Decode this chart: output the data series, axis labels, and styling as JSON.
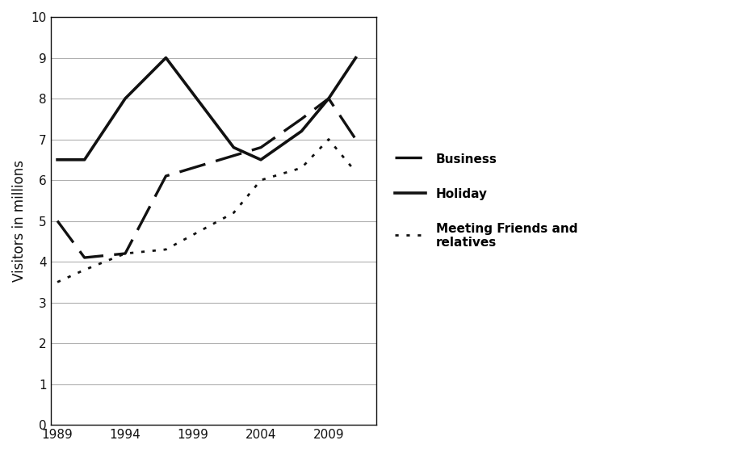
{
  "years_holiday": [
    1989,
    1991,
    1994,
    1997,
    2002,
    2004,
    2007,
    2009,
    2011
  ],
  "holiday": [
    6.5,
    6.5,
    8.0,
    9.0,
    6.8,
    6.5,
    7.2,
    8.0,
    9.0
  ],
  "years_business": [
    1989,
    1991,
    1994,
    1997,
    2002,
    2004,
    2007,
    2009,
    2011
  ],
  "business": [
    5.0,
    4.1,
    4.2,
    6.1,
    6.6,
    6.8,
    7.5,
    8.0,
    7.0
  ],
  "years_friends": [
    1989,
    1991,
    1994,
    1997,
    2002,
    2004,
    2007,
    2009,
    2011
  ],
  "friends": [
    3.5,
    3.8,
    4.2,
    4.3,
    5.2,
    6.0,
    6.3,
    7.0,
    6.2
  ],
  "ylabel": "Visitors in millions",
  "ylim": [
    0,
    10
  ],
  "yticks": [
    0,
    1,
    2,
    3,
    4,
    5,
    6,
    7,
    8,
    9,
    10
  ],
  "xticks": [
    1989,
    1994,
    1999,
    2004,
    2009
  ],
  "xlim": [
    1988.5,
    2012.5
  ],
  "legend_business": "Business",
  "legend_holiday": "Holiday",
  "legend_friends": "Meeting Friends and\nrelatives",
  "line_color": "#111111",
  "bg_color": "#ffffff",
  "grid_color": "#b0b0b0"
}
